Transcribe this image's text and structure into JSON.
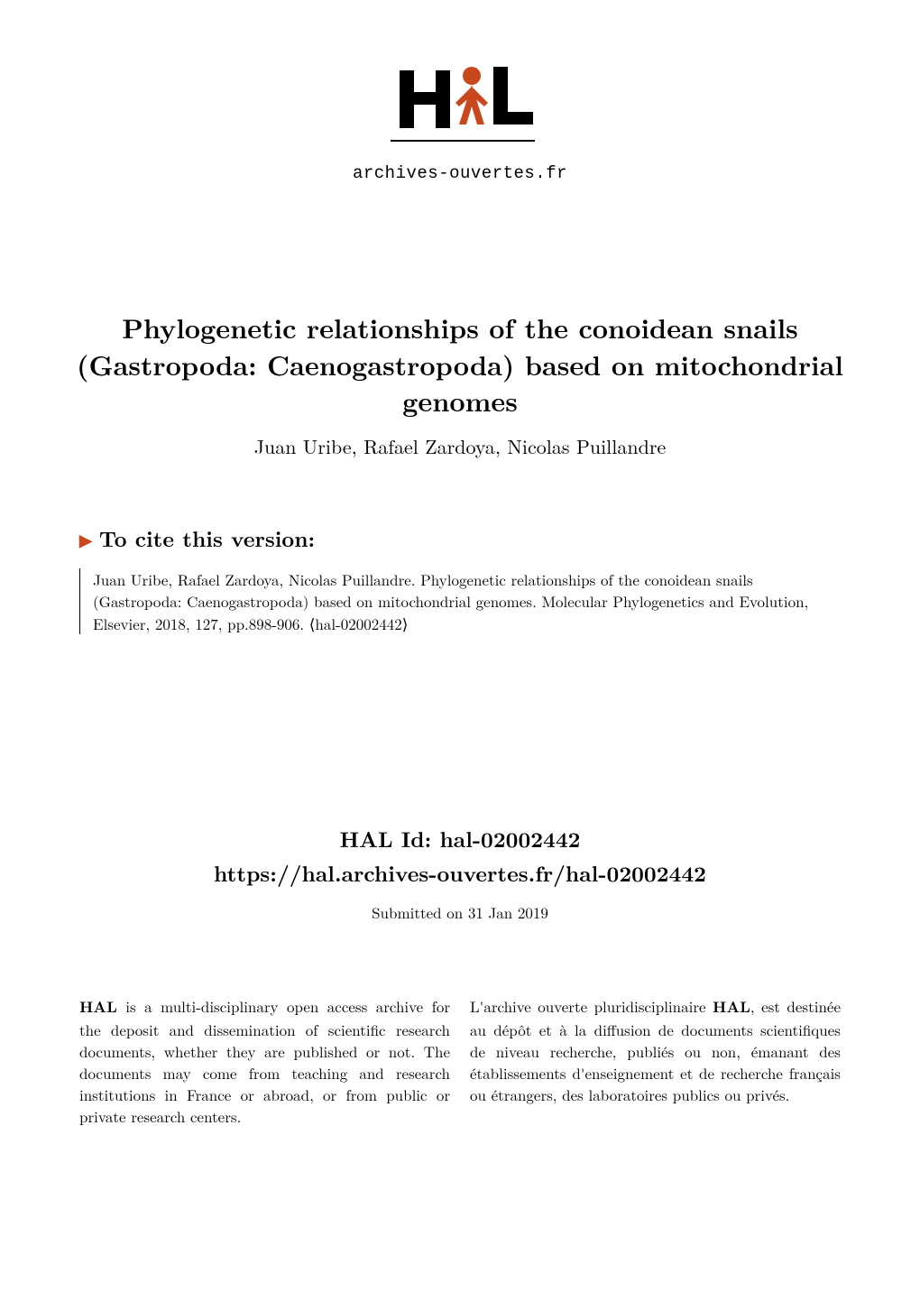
{
  "logo": {
    "brand_text": "archives-ouvertes.fr",
    "person_color": "#c8471d",
    "text_color": "#000000",
    "bg_color": "#ffffff"
  },
  "paper": {
    "title": "Phylogenetic relationships of the conoidean snails (Gastropoda: Caenogastropoda) based on mitochondrial genomes",
    "authors": "Juan Uribe, Rafael Zardoya, Nicolas Puillandre"
  },
  "cite": {
    "heading": "To cite this version:",
    "triangle_color": "#c8471d",
    "body": "Juan Uribe, Rafael Zardoya, Nicolas Puillandre. Phylogenetic relationships of the conoidean snails (Gastropoda: Caenogastropoda) based on mitochondrial genomes. Molecular Phylogenetics and Evolution, Elsevier, 2018, 127, pp.898-906. ⟨hal-02002442⟩"
  },
  "hal": {
    "id_label": "HAL Id: hal-02002442",
    "url": "https://hal.archives-ouvertes.fr/hal-02002442",
    "submitted": "Submitted on 31 Jan 2019"
  },
  "columns": {
    "left": "HAL is a multi-disciplinary open access archive for the deposit and dissemination of scientific research documents, whether they are published or not. The documents may come from teaching and research institutions in France or abroad, or from public or private research centers.",
    "right": "L'archive ouverte pluridisciplinaire HAL, est destinée au dépôt et à la diffusion de documents scientifiques de niveau recherche, publiés ou non, émanant des établissements d'enseignement et de recherche français ou étrangers, des laboratoires publics ou privés."
  },
  "typography": {
    "title_fontsize": 30,
    "authors_fontsize": 22,
    "cite_heading_fontsize": 24,
    "body_fontsize": 17,
    "halid_fontsize": 24
  }
}
